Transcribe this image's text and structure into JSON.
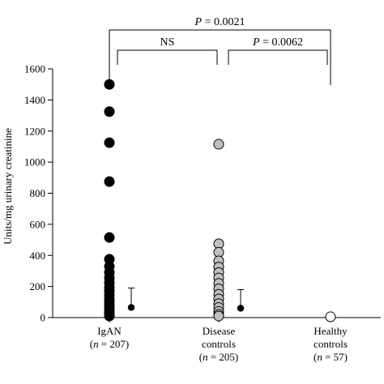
{
  "chart_data": {
    "type": "scatter",
    "ylabel": "Units/mg urinary creatinine",
    "ylim": [
      0,
      1600
    ],
    "yticks": [
      "0",
      "200",
      "400",
      "600",
      "800",
      "1000",
      "1200",
      "1400",
      "1600"
    ],
    "grid": false,
    "categories": [
      {
        "lines": [
          "IgAN",
          "(n = 207)"
        ],
        "fill": "#000000"
      },
      {
        "lines": [
          "Disease",
          "controls",
          "(n = 205)"
        ],
        "fill": "#c0c0c0"
      },
      {
        "lines": [
          "Healthy",
          "controls",
          "(n = 57)"
        ],
        "fill": "#ffffff"
      }
    ],
    "series": [
      {
        "points": [
          1500,
          1325,
          1125,
          875,
          515,
          375,
          330,
          290,
          255,
          225,
          195,
          170,
          145,
          120,
          100,
          80,
          60,
          40,
          25,
          10
        ],
        "summary": {
          "center": 65,
          "upper": 190
        }
      },
      {
        "points": [
          1115,
          475,
          420,
          365,
          325,
          290,
          255,
          220,
          185,
          150,
          120,
          90,
          65,
          40,
          20,
          10
        ],
        "summary": {
          "center": 60,
          "upper": 180
        }
      },
      {
        "points": [
          5
        ],
        "summary": null
      }
    ],
    "significance": [
      {
        "label": "NS",
        "from": 0,
        "to": 1,
        "level": 1
      },
      {
        "label": "P = 0.0062",
        "from": 1,
        "to": 2,
        "level": 1
      },
      {
        "label": "P = 0.0021",
        "from": 0,
        "to": 2,
        "level": 2
      }
    ]
  }
}
